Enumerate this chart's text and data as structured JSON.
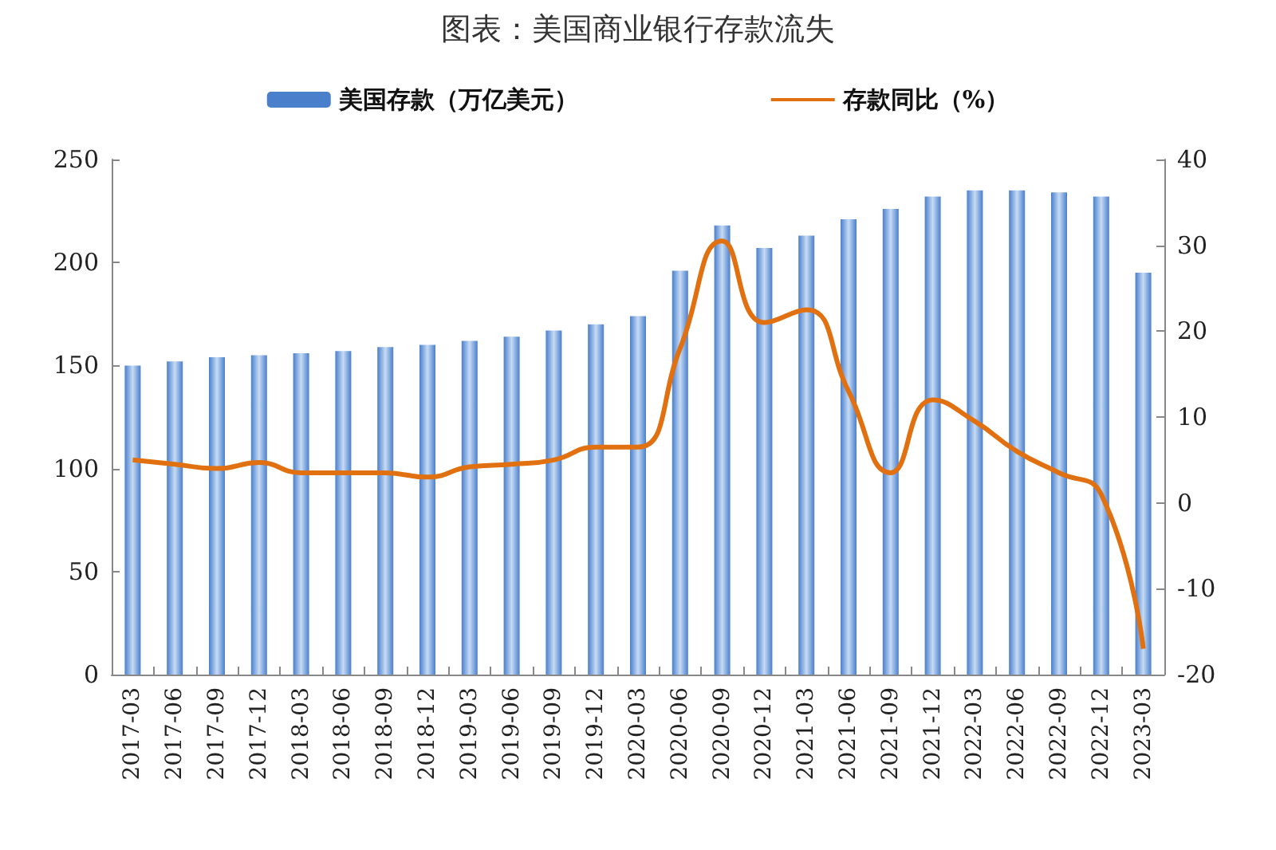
{
  "chart_data": {
    "type": "bar",
    "title": "图表：美国商业银行存款流失",
    "categories": [
      "2017-03",
      "2017-06",
      "2017-09",
      "2017-12",
      "2018-03",
      "2018-06",
      "2018-09",
      "2018-12",
      "2019-03",
      "2019-06",
      "2019-09",
      "2019-12",
      "2020-03",
      "2020-06",
      "2020-09",
      "2020-12",
      "2021-03",
      "2021-06",
      "2021-09",
      "2021-12",
      "2022-03",
      "2022-06",
      "2022-09",
      "2022-12",
      "2023-03"
    ],
    "series": [
      {
        "name": "美国存款（万亿美元）",
        "color": "#4a7fcc",
        "values": [
          150,
          152,
          154,
          155,
          156,
          157,
          159,
          160,
          162,
          164,
          167,
          170,
          174,
          196,
          218,
          207,
          213,
          221,
          226,
          232,
          235,
          235,
          234,
          232,
          195
        ]
      },
      {
        "name": "存款同比（%）",
        "type": "line",
        "axis": "y2",
        "color": "#e07010",
        "values": [
          5,
          4.5,
          4,
          4.7,
          3.5,
          3.5,
          3.5,
          3,
          4.2,
          4.5,
          5,
          6.5,
          6.5,
          18,
          30.5,
          21,
          22.5,
          13,
          3.5,
          12,
          9.5,
          6,
          3.5,
          1,
          -17
        ]
      }
    ],
    "ylim": [
      0,
      250
    ],
    "yticks": [
      0,
      50,
      100,
      150,
      200,
      250
    ],
    "y2lim": [
      -20,
      40
    ],
    "y2ticks": [
      -20,
      -10,
      0,
      10,
      20,
      30,
      40
    ],
    "legend": "top",
    "grid": false,
    "marker": "none"
  }
}
